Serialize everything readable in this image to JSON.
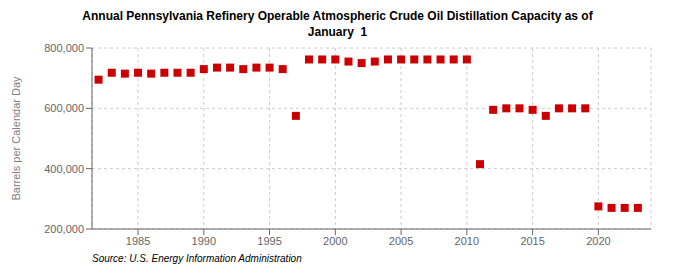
{
  "chart_data": {
    "type": "scatter",
    "title": "Annual Pennsylvania Refinery Operable Atmospheric Crude Oil Distillation Capacity as of\nJanuary  1",
    "ylabel": "Barrels per Calendar Day",
    "source": "Source: U.S. Energy Information Administration",
    "x": [
      1982,
      1983,
      1984,
      1985,
      1986,
      1987,
      1988,
      1989,
      1990,
      1991,
      1992,
      1993,
      1994,
      1995,
      1996,
      1997,
      1998,
      1999,
      2000,
      2001,
      2002,
      2003,
      2004,
      2005,
      2006,
      2007,
      2008,
      2009,
      2010,
      2011,
      2012,
      2013,
      2014,
      2015,
      2016,
      2017,
      2018,
      2019,
      2020,
      2021,
      2022,
      2023
    ],
    "values": [
      695000,
      718000,
      715000,
      718000,
      715000,
      718000,
      718000,
      718000,
      730000,
      735000,
      735000,
      730000,
      735000,
      735000,
      730000,
      575000,
      762000,
      762000,
      762000,
      755000,
      750000,
      755000,
      762000,
      762000,
      762000,
      762000,
      762000,
      762000,
      762000,
      415000,
      595000,
      600000,
      600000,
      595000,
      575000,
      600000,
      600000,
      600000,
      275000,
      270000,
      270000,
      270000
    ],
    "color": "#cc0000",
    "marker": "square",
    "grid": true,
    "xlim": [
      1981.5,
      2024
    ],
    "xticks": [
      1985,
      1990,
      1995,
      2000,
      2005,
      2010,
      2015,
      2020
    ],
    "ylim": [
      200000,
      800000
    ],
    "yticks": [
      {
        "value": 200000,
        "label": "200,000"
      },
      {
        "value": 400000,
        "label": "400,000"
      },
      {
        "value": 600000,
        "label": "600,000"
      },
      {
        "value": 800000,
        "label": "800,000"
      }
    ]
  }
}
